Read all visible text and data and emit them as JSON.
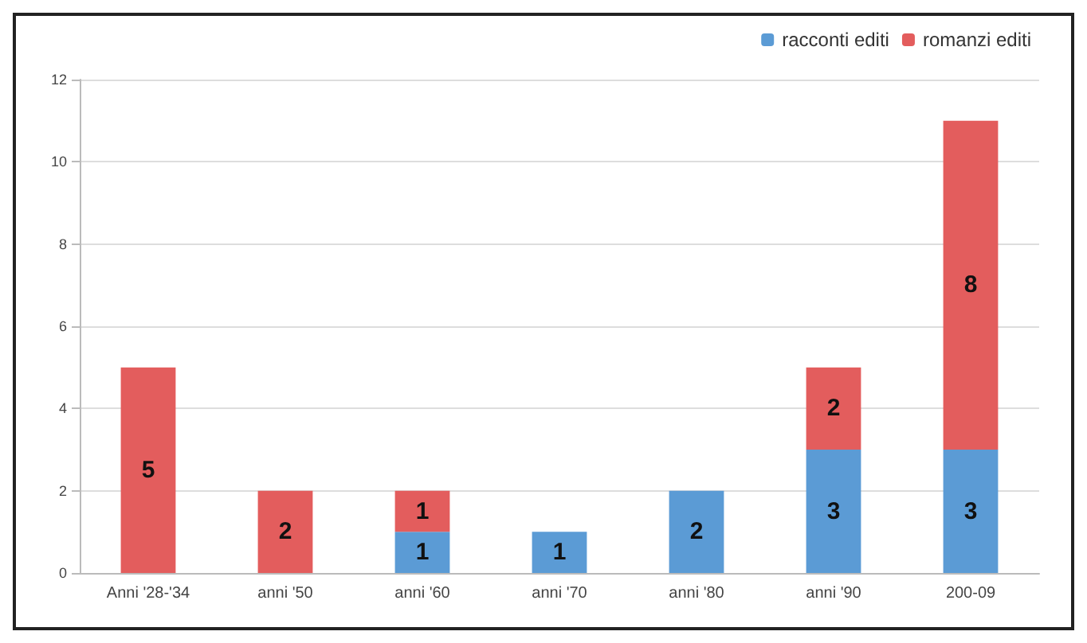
{
  "chart_data": {
    "type": "bar",
    "stacked": true,
    "categories": [
      "Anni '28-'34",
      "anni '50",
      "anni '60",
      "anni '70",
      "anni '80",
      "anni '90",
      "200-09"
    ],
    "series": [
      {
        "name": "racconti editi",
        "color": "#5b9bd5",
        "values": [
          null,
          null,
          1,
          1,
          2,
          3,
          3
        ]
      },
      {
        "name": "romanzi editi",
        "color": "#e35d5d",
        "values": [
          5,
          2,
          1,
          null,
          null,
          2,
          8
        ]
      }
    ],
    "ylim": [
      0,
      12
    ],
    "yticks": [
      0,
      2,
      4,
      6,
      8,
      10,
      12
    ],
    "grid": "y",
    "legend": "top right",
    "data_labels": true
  }
}
